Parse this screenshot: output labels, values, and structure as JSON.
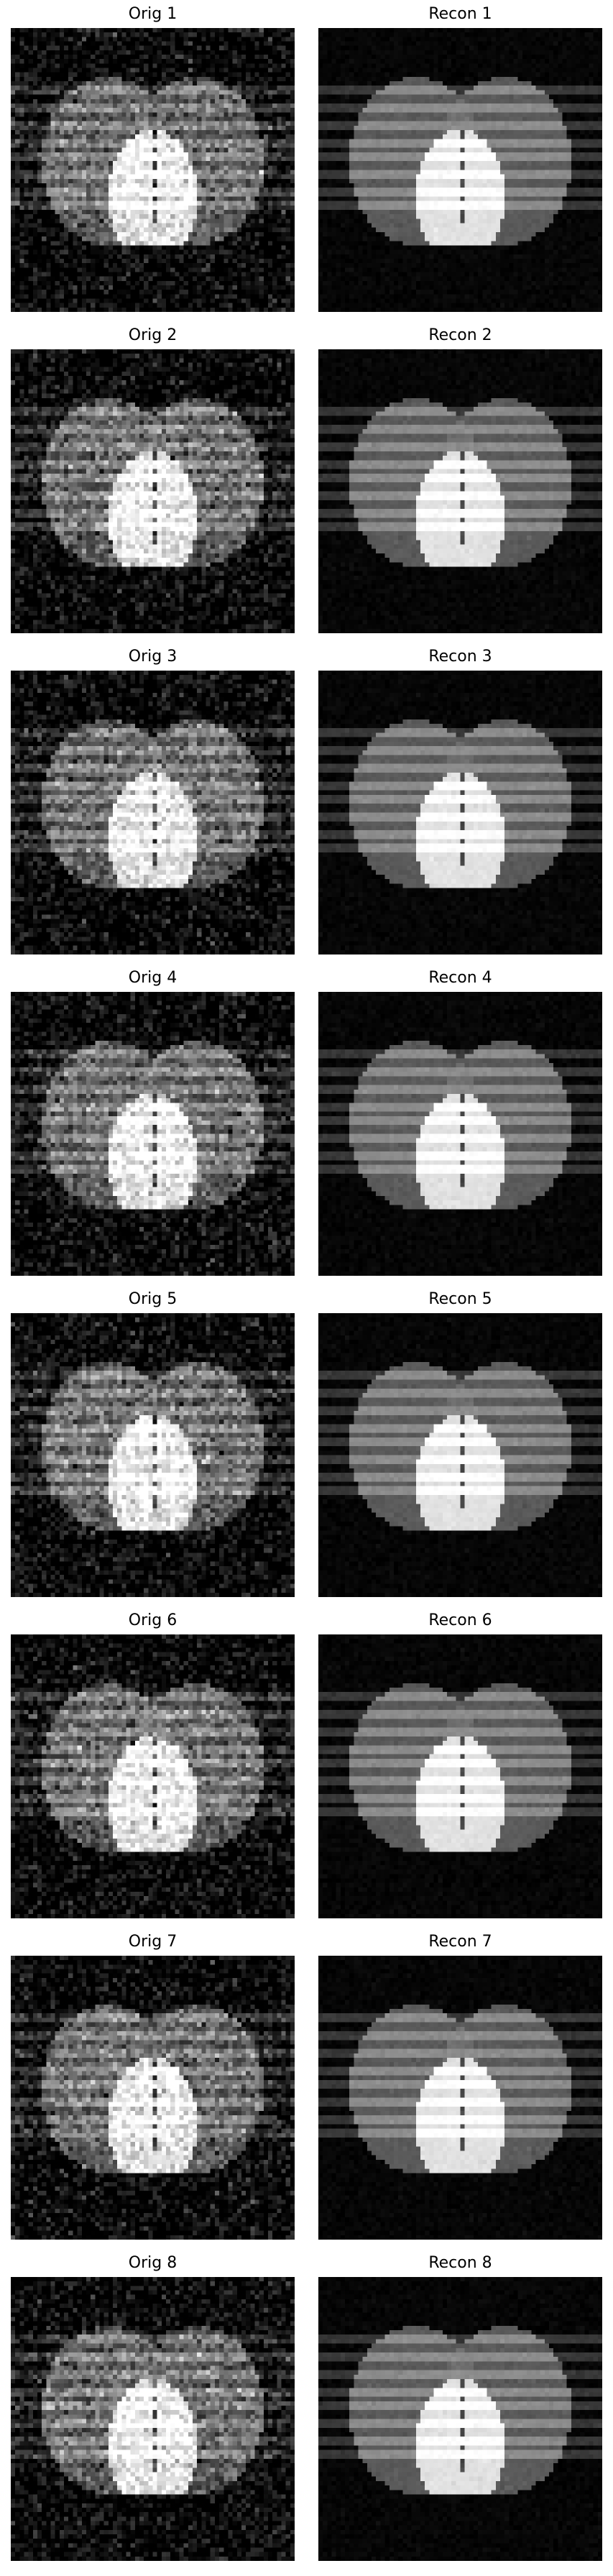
{
  "panels": [
    {
      "title": "Orig 1",
      "kind": "orig"
    },
    {
      "title": "Recon 1",
      "kind": "recon"
    },
    {
      "title": "Orig 2",
      "kind": "orig"
    },
    {
      "title": "Recon 2",
      "kind": "recon"
    },
    {
      "title": "Orig 3",
      "kind": "orig"
    },
    {
      "title": "Recon 3",
      "kind": "recon"
    },
    {
      "title": "Orig 4",
      "kind": "orig"
    },
    {
      "title": "Recon 4",
      "kind": "recon"
    },
    {
      "title": "Orig 5",
      "kind": "orig"
    },
    {
      "title": "Recon 5",
      "kind": "recon"
    },
    {
      "title": "Orig 6",
      "kind": "orig"
    },
    {
      "title": "Recon 6",
      "kind": "recon"
    },
    {
      "title": "Orig 7",
      "kind": "orig"
    },
    {
      "title": "Recon 7",
      "kind": "recon"
    },
    {
      "title": "Orig 8",
      "kind": "orig"
    },
    {
      "title": "Recon 8",
      "kind": "recon"
    }
  ]
}
